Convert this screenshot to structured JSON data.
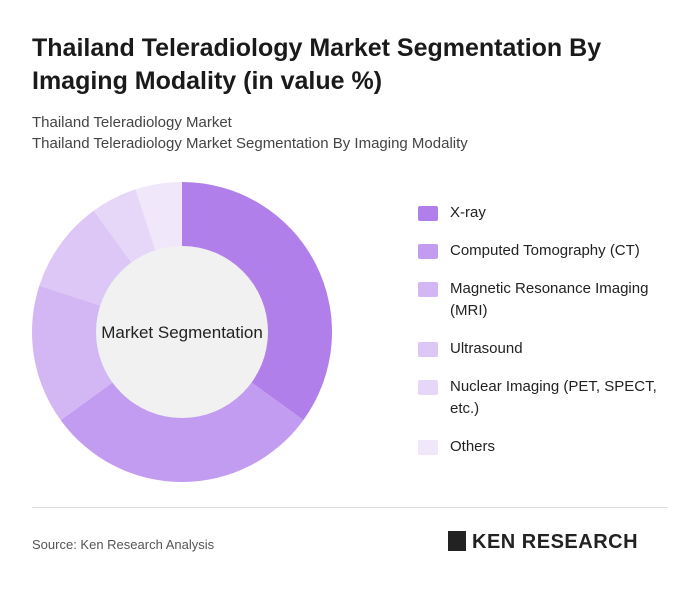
{
  "chart_data": {
    "type": "pie",
    "title": "Thailand Teleradiology Market Segmentation By Imaging Modality (in value %)",
    "subtitle": [
      "Thailand Teleradiology Market",
      "Thailand Teleradiology Market Segmentation By Imaging Modality"
    ],
    "center_label": "Market Segmentation",
    "categories": [
      "X-ray",
      "Computed Tomography (CT)",
      "Magnetic Resonance Imaging (MRI)",
      "Ultrasound",
      "Nuclear Imaging (PET, SPECT, etc.)",
      "Others"
    ],
    "values": [
      35,
      30,
      15,
      10,
      5,
      5
    ],
    "colors": [
      "#b07fe9",
      "#c29cf0",
      "#d3b7f4",
      "#dcc7f6",
      "#e6d7f9",
      "#f0e7fb"
    ],
    "source": "Source: Ken Research Analysis",
    "logo": "KEN RESEARCH"
  }
}
